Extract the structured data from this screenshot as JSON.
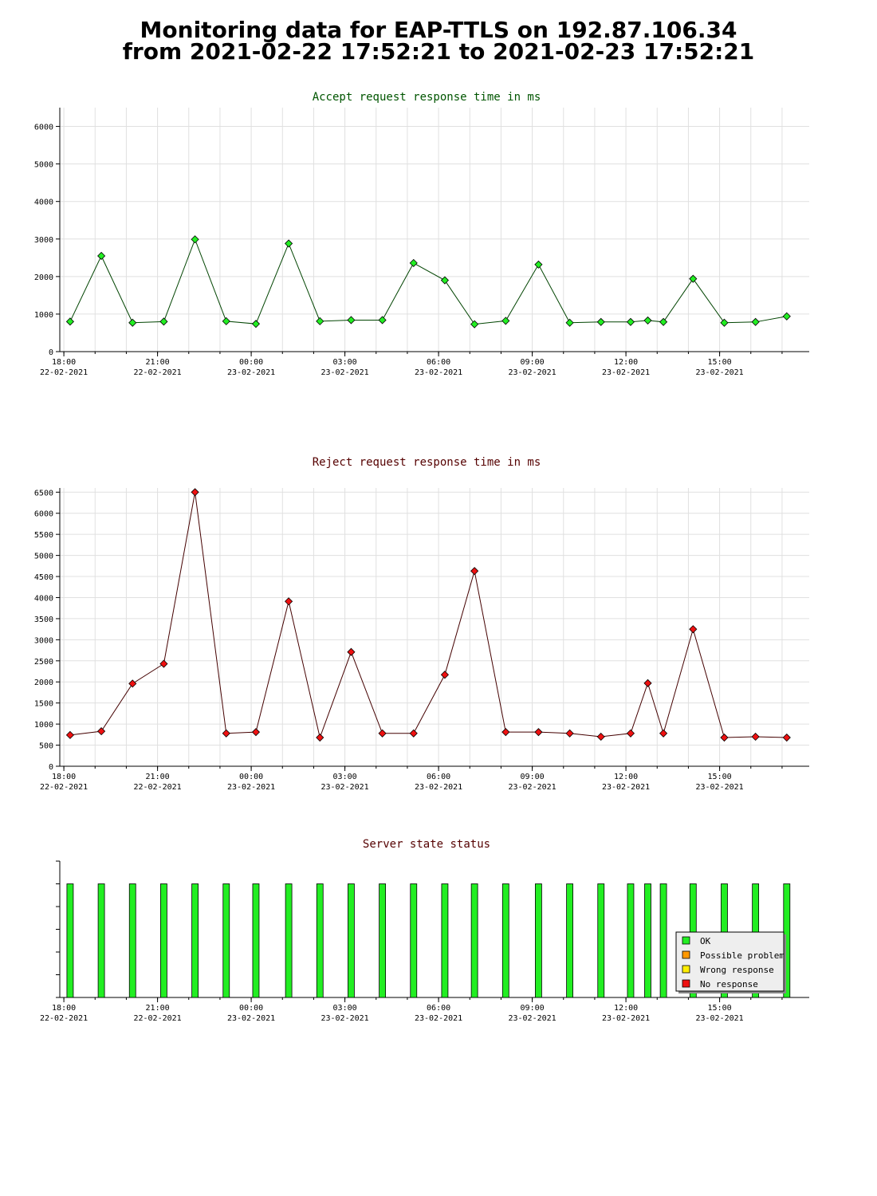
{
  "page": {
    "title_line1": "Monitoring data for EAP-TTLS on 192.87.106.34",
    "title_line2": "from 2021-02-22 17:52:21 to 2021-02-23 17:52:21"
  },
  "colors": {
    "accept_title": "#005500",
    "reject_title": "#550000",
    "status_title": "#550000",
    "accept_line": "#004400",
    "accept_marker": "#22ee22",
    "reject_line": "#440000",
    "reject_marker": "#ee1111",
    "ok": "#22ee22",
    "possible_problem": "#ff9900",
    "wrong_response": "#ffee00",
    "no_response": "#ee1111",
    "grid": "#e0e0e0"
  },
  "time_axis": {
    "ticks": [
      {
        "time": "18:00",
        "date": "22-02-2021",
        "hour": 18
      },
      {
        "time": "21:00",
        "date": "22-02-2021",
        "hour": 21
      },
      {
        "time": "00:00",
        "date": "23-02-2021",
        "hour": 24
      },
      {
        "time": "03:00",
        "date": "23-02-2021",
        "hour": 27
      },
      {
        "time": "06:00",
        "date": "23-02-2021",
        "hour": 30
      },
      {
        "time": "09:00",
        "date": "23-02-2021",
        "hour": 33
      },
      {
        "time": "12:00",
        "date": "23-02-2021",
        "hour": 36
      },
      {
        "time": "15:00",
        "date": "23-02-2021",
        "hour": 39
      }
    ],
    "range": [
      17.87,
      41.87
    ]
  },
  "chart_data": [
    {
      "type": "line",
      "title": "Accept request response time in ms",
      "ylim": [
        0,
        6500
      ],
      "yticks": [
        0,
        1000,
        2000,
        3000,
        4000,
        5000,
        6000
      ],
      "grid": true,
      "x": [
        18.2,
        19.2,
        20.2,
        21.2,
        22.2,
        23.2,
        24.15,
        25.2,
        26.2,
        27.2,
        28.2,
        29.2,
        30.2,
        31.15,
        32.15,
        33.2,
        34.2,
        35.2,
        36.15,
        36.7,
        37.2,
        38.15,
        39.15,
        40.15,
        41.15
      ],
      "series": [
        {
          "values": [
            800,
            2550,
            770,
            800,
            2990,
            810,
            740,
            2880,
            810,
            840,
            840,
            2360,
            1900,
            730,
            820,
            2320,
            770,
            790,
            790,
            830,
            790,
            1940,
            770,
            790,
            940
          ]
        }
      ]
    },
    {
      "type": "line",
      "title": "Reject request response time in ms",
      "ylim": [
        0,
        6600
      ],
      "yticks": [
        0,
        500,
        1000,
        1500,
        2000,
        2500,
        3000,
        3500,
        4000,
        4500,
        5000,
        5500,
        6000,
        6500
      ],
      "grid": true,
      "x": [
        18.2,
        19.2,
        20.2,
        21.2,
        22.2,
        23.2,
        24.15,
        25.2,
        26.2,
        27.2,
        28.2,
        29.2,
        30.2,
        31.15,
        32.15,
        33.2,
        34.2,
        35.2,
        36.15,
        36.7,
        37.2,
        38.15,
        39.15,
        40.15,
        41.15
      ],
      "series": [
        {
          "values": [
            740,
            830,
            1960,
            2430,
            6500,
            780,
            810,
            3910,
            680,
            2710,
            780,
            780,
            2170,
            4630,
            810,
            810,
            780,
            700,
            780,
            1970,
            780,
            3250,
            680,
            700,
            680
          ]
        }
      ]
    },
    {
      "type": "bar",
      "title": "Server state status",
      "x": [
        18.2,
        19.2,
        20.2,
        21.2,
        22.2,
        23.2,
        24.15,
        25.2,
        26.2,
        27.2,
        28.2,
        29.2,
        30.2,
        31.15,
        32.15,
        33.2,
        34.2,
        35.2,
        36.15,
        36.7,
        37.2,
        38.15,
        39.15,
        40.15,
        41.15
      ],
      "series": [
        {
          "status": [
            "OK",
            "OK",
            "OK",
            "OK",
            "OK",
            "OK",
            "OK",
            "OK",
            "OK",
            "OK",
            "OK",
            "OK",
            "OK",
            "OK",
            "OK",
            "OK",
            "OK",
            "OK",
            "OK",
            "OK",
            "OK",
            "OK",
            "OK",
            "OK",
            "OK"
          ]
        }
      ],
      "legend": {
        "placement": "bottom-right",
        "items": [
          {
            "label": "OK",
            "color_key": "ok"
          },
          {
            "label": "Possible problem",
            "color_key": "possible_problem"
          },
          {
            "label": "Wrong response",
            "color_key": "wrong_response"
          },
          {
            "label": "No response",
            "color_key": "no_response"
          }
        ]
      }
    }
  ]
}
